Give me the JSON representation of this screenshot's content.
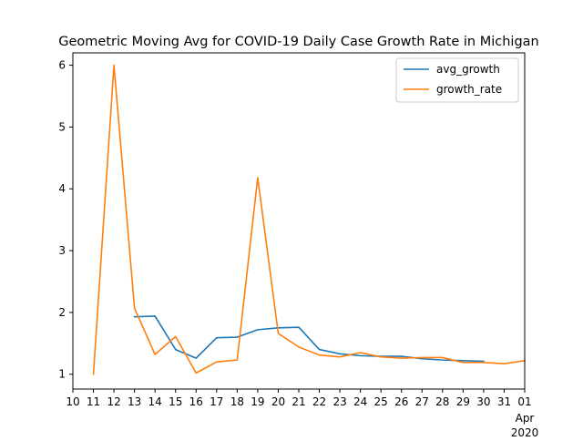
{
  "chart_data": {
    "type": "line",
    "title": "Geometric Moving Avg for COVID-19 Daily Case Growth Rate in Michigan",
    "xlabel": "",
    "ylabel": "",
    "x_tick_labels": [
      "10",
      "11",
      "12",
      "13",
      "14",
      "15",
      "16",
      "17",
      "18",
      "19",
      "20",
      "21",
      "22",
      "23",
      "24",
      "25",
      "26",
      "27",
      "28",
      "29",
      "30",
      "31",
      "01"
    ],
    "x_sub_labels": {
      "month": "Apr",
      "year": "2020"
    },
    "x_range": [
      "2020-03-10",
      "2020-04-01"
    ],
    "ylim": [
      0.76,
      6.2
    ],
    "y_ticks": [
      1,
      2,
      3,
      4,
      5,
      6
    ],
    "grid": false,
    "legend": "top-right",
    "series": [
      {
        "name": "avg_growth",
        "color": "#1f77b4",
        "x": [
          "2020-03-13",
          "2020-03-14",
          "2020-03-15",
          "2020-03-16",
          "2020-03-17",
          "2020-03-18",
          "2020-03-19",
          "2020-03-20",
          "2020-03-21",
          "2020-03-22",
          "2020-03-23",
          "2020-03-24",
          "2020-03-25",
          "2020-03-26",
          "2020-03-27",
          "2020-03-28",
          "2020-03-29",
          "2020-03-30"
        ],
        "values": [
          1.93,
          1.94,
          1.4,
          1.26,
          1.59,
          1.6,
          1.72,
          1.75,
          1.76,
          1.4,
          1.33,
          1.3,
          1.29,
          1.29,
          1.25,
          1.23,
          1.22,
          1.21
        ]
      },
      {
        "name": "growth_rate",
        "color": "#ff7f0e",
        "x": [
          "2020-03-11",
          "2020-03-12",
          "2020-03-13",
          "2020-03-14",
          "2020-03-15",
          "2020-03-16",
          "2020-03-17",
          "2020-03-18",
          "2020-03-19",
          "2020-03-20",
          "2020-03-21",
          "2020-03-22",
          "2020-03-23",
          "2020-03-24",
          "2020-03-25",
          "2020-03-26",
          "2020-03-27",
          "2020-03-28",
          "2020-03-29",
          "2020-03-30",
          "2020-03-31",
          "2020-04-01"
        ],
        "values": [
          1.0,
          6.0,
          2.07,
          1.32,
          1.61,
          1.02,
          1.2,
          1.23,
          4.18,
          1.66,
          1.44,
          1.31,
          1.28,
          1.35,
          1.28,
          1.26,
          1.27,
          1.27,
          1.19,
          1.19,
          1.17,
          1.22
        ]
      }
    ]
  }
}
